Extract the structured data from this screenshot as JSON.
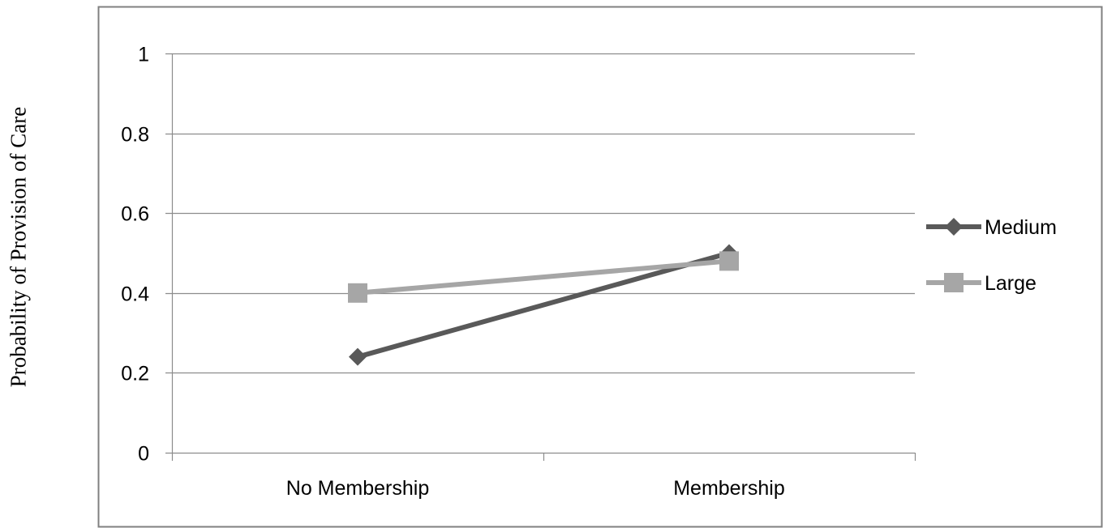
{
  "chart_data": {
    "type": "line",
    "title": "",
    "ylabel": "Probability of Provision of Care",
    "xlabel": "",
    "categories": [
      "No Membership",
      "Membership"
    ],
    "ylim": [
      0,
      1
    ],
    "yticks": [
      "0",
      "0.2",
      "0.4",
      "0.6",
      "0.8",
      "1"
    ],
    "grid": true,
    "legend_position": "right",
    "series": [
      {
        "name": "Medium",
        "values": [
          0.24,
          0.5
        ],
        "color": "#595959",
        "marker": "diamond"
      },
      {
        "name": "Large",
        "values": [
          0.4,
          0.48
        ],
        "color": "#a6a6a6",
        "marker": "square"
      }
    ]
  }
}
